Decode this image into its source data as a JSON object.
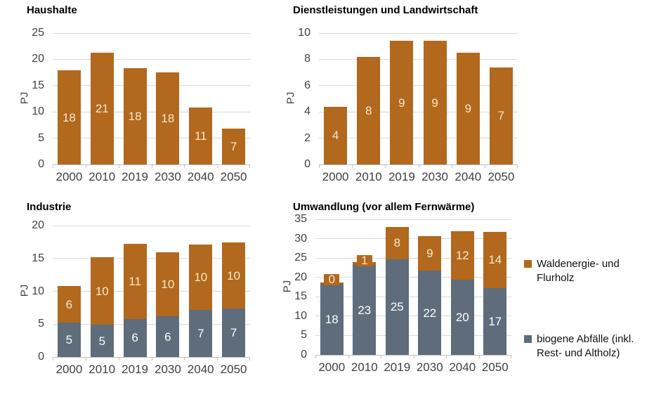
{
  "colors": {
    "orange": "#b2681d",
    "gray": "#5e6c7b",
    "label_on_orange": "#f6e8cb",
    "label_on_gray": "#ffffff",
    "gridline": "#d9d9d9",
    "axis": "#bfbfbf",
    "tick_text": "#404040",
    "title_text": "#000000",
    "legend_text": "#111111",
    "background": "#ffffff"
  },
  "legend": {
    "position": "right",
    "items": [
      {
        "label": "Waldenergie- und Flurholz",
        "color_key": "orange"
      },
      {
        "label": "biogene Abfälle (inkl. Rest- und Altholz)",
        "color_key": "gray"
      }
    ]
  },
  "chart_data": [
    {
      "id": "haushalte",
      "type": "bar",
      "title": "Haushalte",
      "ylabel": "PJ",
      "xlabel": "",
      "ylim": [
        0,
        25
      ],
      "yticks": [
        0,
        5,
        10,
        15,
        20,
        25
      ],
      "grid": true,
      "categories": [
        "2000",
        "2010",
        "2019",
        "2030",
        "2040",
        "2050"
      ],
      "series": [
        {
          "name": "Waldenergie- und Flurholz",
          "color_key": "orange",
          "values": [
            17.9,
            21.2,
            18.3,
            17.5,
            10.9,
            6.8
          ],
          "labels": [
            "18",
            "21",
            "18",
            "18",
            "11",
            "7"
          ]
        }
      ]
    },
    {
      "id": "dienstleistungen-landwirtschaft",
      "type": "bar",
      "title": "Dienstleistungen und Landwirtschaft",
      "ylabel": "PJ",
      "xlabel": "",
      "ylim": [
        0,
        10
      ],
      "yticks": [
        0,
        2,
        4,
        6,
        8,
        10
      ],
      "grid": true,
      "categories": [
        "2000",
        "2010",
        "2019",
        "2030",
        "2040",
        "2050"
      ],
      "series": [
        {
          "name": "Waldenergie- und Flurholz",
          "color_key": "orange",
          "values": [
            4.4,
            8.2,
            9.4,
            9.4,
            8.5,
            7.4
          ],
          "labels": [
            "4",
            "8",
            "9",
            "9",
            "9",
            "7"
          ]
        }
      ]
    },
    {
      "id": "industrie",
      "type": "stacked-bar",
      "title": "Industrie",
      "ylabel": "PJ",
      "xlabel": "",
      "ylim": [
        0,
        20
      ],
      "yticks": [
        0,
        5,
        10,
        15,
        20
      ],
      "grid": true,
      "categories": [
        "2000",
        "2010",
        "2019",
        "2030",
        "2040",
        "2050"
      ],
      "series": [
        {
          "name": "biogene Abfälle (inkl. Rest- und Altholz)",
          "color_key": "gray",
          "values": [
            5.2,
            4.9,
            5.8,
            6.2,
            7.2,
            7.4
          ],
          "labels": [
            "5",
            "5",
            "6",
            "6",
            "7",
            "7"
          ]
        },
        {
          "name": "Waldenergie- und Flurholz",
          "color_key": "orange",
          "values": [
            5.6,
            10.3,
            11.4,
            9.7,
            9.9,
            10.0
          ],
          "labels": [
            "6",
            "10",
            "11",
            "10",
            "10",
            "10"
          ]
        }
      ]
    },
    {
      "id": "umwandlung",
      "type": "stacked-bar",
      "title": "Umwandlung (vor allem Fernwärme)",
      "ylabel": "PJ",
      "xlabel": "",
      "ylim": [
        0,
        35
      ],
      "yticks": [
        0,
        5,
        10,
        15,
        20,
        25,
        30,
        35
      ],
      "grid": true,
      "categories": [
        "2000",
        "2010",
        "2019",
        "2030",
        "2040",
        "2050"
      ],
      "series": [
        {
          "name": "biogene Abfälle (inkl. Rest- und Altholz)",
          "color_key": "gray",
          "values": [
            18.3,
            23.2,
            24.7,
            21.7,
            19.5,
            17.3
          ],
          "labels": [
            "18",
            "23",
            "25",
            "22",
            "20",
            "17"
          ]
        },
        {
          "name": "Waldenergie- und Flurholz",
          "color_key": "orange",
          "values": [
            0.4,
            0.8,
            8.3,
            9.0,
            12.4,
            14.4
          ],
          "labels": [
            "0",
            "1",
            "8",
            "9",
            "12",
            "14"
          ]
        }
      ]
    }
  ]
}
